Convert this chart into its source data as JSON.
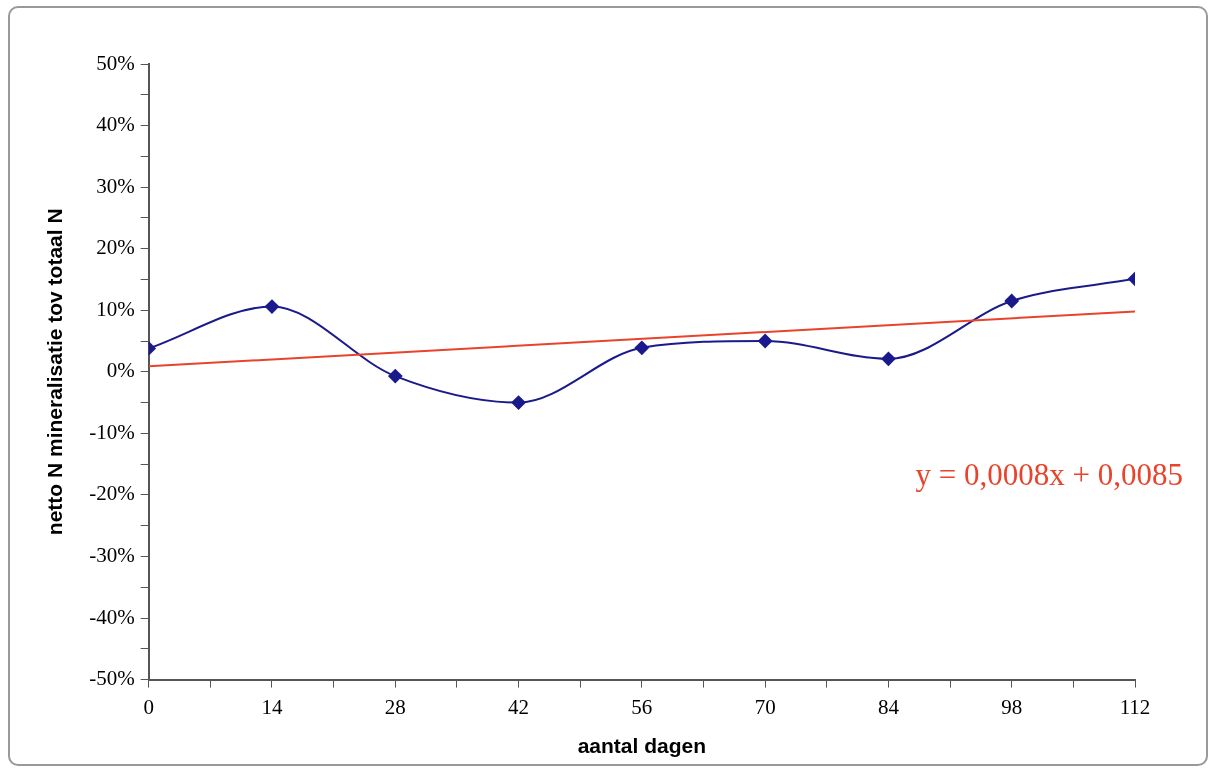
{
  "chart_data": {
    "type": "line",
    "xlabel": "aantal dagen",
    "ylabel": "netto N mineralisatie tov totaal N",
    "x": [
      0,
      14,
      28,
      42,
      56,
      70,
      84,
      98,
      112
    ],
    "series": [
      {
        "color": "#1a1a8c",
        "marker": "diamond",
        "values": [
          3.8,
          10.6,
          -0.7,
          -5.0,
          3.9,
          5.0,
          2.1,
          11.5,
          15.1
        ]
      },
      {
        "color": "#e8432b",
        "marker": "none",
        "x": [
          0,
          112
        ],
        "values": [
          0.9,
          9.8
        ]
      }
    ],
    "xlim": [
      0,
      112
    ],
    "xticks": [
      0,
      {
        "value": 7,
        "label": null
      },
      14,
      {
        "value": 21,
        "label": null
      },
      28,
      {
        "value": 35,
        "label": null
      },
      42,
      {
        "value": 49,
        "label": null
      },
      56,
      {
        "value": 63,
        "label": null
      },
      70,
      {
        "value": 77,
        "label": null
      },
      84,
      {
        "value": 91,
        "label": null
      },
      98,
      {
        "value": 105,
        "label": null
      },
      112
    ],
    "ylim": [
      -50,
      50
    ],
    "yticks": [
      {
        "value": -50,
        "label": "-50%"
      },
      {
        "value": -45,
        "label": null
      },
      {
        "value": -40,
        "label": "-40%"
      },
      {
        "value": -35,
        "label": null
      },
      {
        "value": -30,
        "label": "-30%"
      },
      {
        "value": -25,
        "label": null
      },
      {
        "value": -20,
        "label": "-20%"
      },
      {
        "value": -15,
        "label": null
      },
      {
        "value": -10,
        "label": "-10%"
      },
      {
        "value": -5,
        "label": null
      },
      {
        "value": 0,
        "label": "0%"
      },
      {
        "value": 5,
        "label": null
      },
      {
        "value": 10,
        "label": "10%"
      },
      {
        "value": 15,
        "label": null
      },
      {
        "value": 20,
        "label": "20%"
      },
      {
        "value": 25,
        "label": null
      },
      {
        "value": 30,
        "label": "30%"
      },
      {
        "value": 35,
        "label": null
      },
      {
        "value": 40,
        "label": "40%"
      },
      {
        "value": 45,
        "label": null
      },
      {
        "value": 50,
        "label": "50%"
      }
    ],
    "annotations": [
      "y = 0,0008x + 0,0085"
    ],
    "grid": false,
    "legend": false
  }
}
